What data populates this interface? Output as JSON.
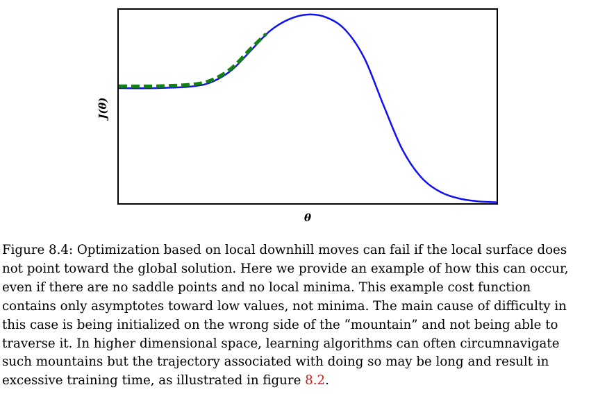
{
  "chart_data": {
    "type": "line",
    "title": "",
    "xlabel": "θ",
    "ylabel": "J(θ)",
    "xlim": [
      0,
      10
    ],
    "ylim": [
      0,
      10
    ],
    "ticks": "none",
    "grid": false,
    "series": [
      {
        "role": "cost-function",
        "color": "#1010f0",
        "style": "solid",
        "x": [
          0,
          1,
          2,
          2.5,
          3,
          3.5,
          4,
          4.5,
          5,
          5.5,
          6,
          6.5,
          7,
          7.5,
          8,
          8.5,
          9,
          9.5,
          10
        ],
        "y": [
          5.95,
          5.95,
          6.05,
          6.3,
          6.9,
          7.9,
          8.9,
          9.5,
          9.75,
          9.6,
          8.95,
          7.5,
          5.1,
          2.8,
          1.35,
          0.6,
          0.25,
          0.1,
          0.05
        ]
      },
      {
        "role": "local-trajectory",
        "color": "#138013",
        "style": "dashed",
        "x": [
          0,
          1,
          2,
          2.5,
          3,
          3.5,
          3.9
        ],
        "y": [
          6.05,
          6.05,
          6.15,
          6.4,
          7.0,
          8.0,
          8.75
        ]
      }
    ]
  },
  "caption": {
    "line1": "Figure 8.4: Optimization based on local downhill moves can fail if the local surface does",
    "line2": "not point toward the global solution. Here we provide an example of how this can occur,",
    "line3": "even if there are no saddle points and no local minima.  This example cost function",
    "line4": "contains only asymptotes toward low values, not minima. The main cause of difficulty in",
    "line5": "this case is being initialized on the wrong side of the “mountain” and not being able to",
    "line6": "traverse it. In higher dimensional space, learning algorithms can often circumnavigate",
    "line7": "such mountains but the trajectory associated with doing so may be long and result in",
    "line8_prefix": "excessive training time, as illustrated in figure ",
    "line8_ref": "8.2",
    "line8_suffix": "."
  }
}
